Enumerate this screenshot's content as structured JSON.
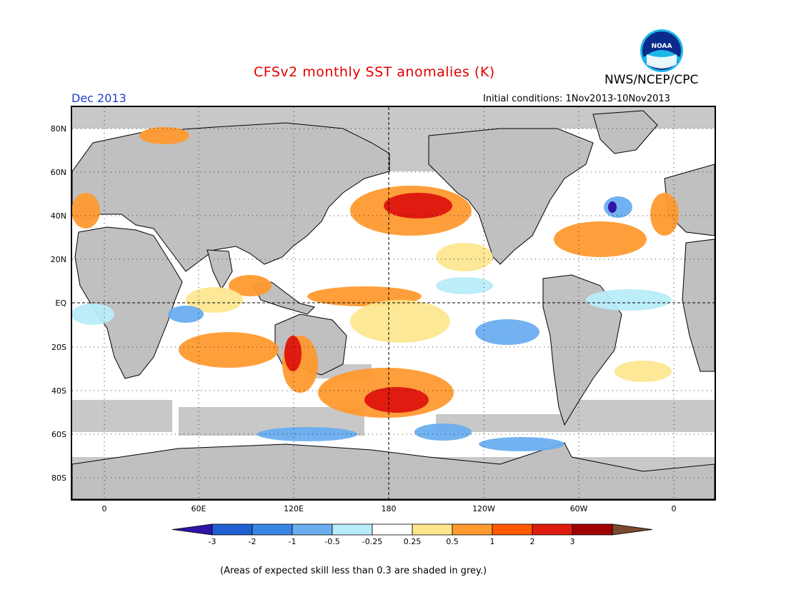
{
  "title": "CFSv2 monthly SST anomalies (K)",
  "agency": "NWS/NCEP/CPC",
  "logo_text": "NOAA",
  "valid_month": "Dec 2013",
  "initial_conditions": "Initial conditions:  1Nov2013-10Nov2013",
  "footnote": "(Areas of expected skill less than 0.3 are shaded in grey.)",
  "map": {
    "lat_labels": [
      "80N",
      "60N",
      "40N",
      "20N",
      "EQ",
      "20S",
      "40S",
      "60S",
      "80S"
    ],
    "lon_labels": [
      "0",
      "60E",
      "120E",
      "180",
      "120W",
      "60W",
      "0"
    ],
    "colors": {
      "ocean_white": "#ffffff",
      "land": "#c0c0c0",
      "skill_grey": "#c8c8c8"
    }
  },
  "colorbar": {
    "labels": [
      "-3",
      "-2",
      "-1",
      "-0.5",
      "-0.25",
      "0.25",
      "0.5",
      "1",
      "2",
      "3"
    ],
    "colors": [
      "#3014a8",
      "#1f5fd0",
      "#3a86e6",
      "#6aaef0",
      "#b8ecf8",
      "#ffffff",
      "#fde58c",
      "#ff9a30",
      "#ff5a00",
      "#e01c10",
      "#a00000",
      "#7a4a30"
    ]
  }
}
